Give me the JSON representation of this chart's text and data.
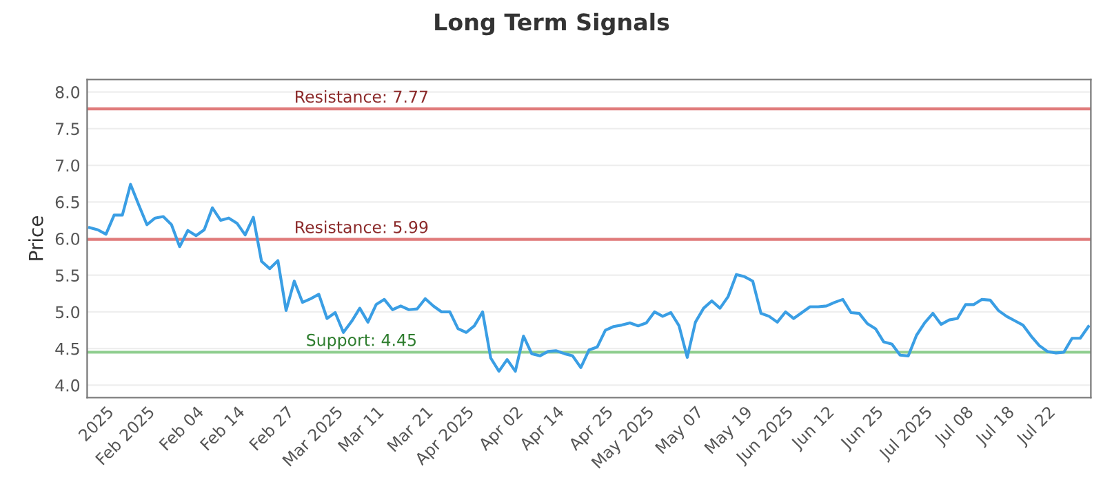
{
  "chart_data": {
    "type": "line",
    "title": "Long Term Signals",
    "ylabel": "Price",
    "categories": [
      null,
      null,
      "2025",
      null,
      null,
      null,
      null,
      "Feb 2025",
      null,
      null,
      null,
      null,
      null,
      "Feb 04",
      null,
      null,
      null,
      null,
      "Feb 14",
      null,
      null,
      null,
      null,
      null,
      "Feb 27",
      null,
      null,
      null,
      null,
      null,
      "Mar 2025",
      null,
      null,
      null,
      null,
      "Mar 11",
      null,
      null,
      null,
      null,
      null,
      "Mar 21",
      null,
      null,
      null,
      null,
      "Apr 2025",
      null,
      null,
      null,
      null,
      null,
      "Apr 02",
      null,
      null,
      null,
      null,
      "Apr 14",
      null,
      null,
      null,
      null,
      null,
      "Apr 25",
      null,
      null,
      null,
      null,
      "May 2025",
      null,
      null,
      null,
      null,
      null,
      "May 07",
      null,
      null,
      null,
      null,
      null,
      "May 19",
      null,
      null,
      null,
      null,
      "Jun 2025",
      null,
      null,
      null,
      null,
      "Jun 12",
      null,
      null,
      null,
      null,
      null,
      "Jun 25",
      null,
      null,
      null,
      null,
      null,
      "Jul 2025",
      null,
      null,
      null,
      null,
      "Jul 08",
      null,
      null,
      null,
      null,
      "Jul 18",
      null,
      null,
      null,
      null,
      "Jul 22",
      null,
      null,
      null,
      null,
      null
    ],
    "series": [
      {
        "color": "#3a9ee4",
        "values": [
          6.15,
          6.12,
          6.06,
          6.32,
          6.32,
          6.74,
          6.46,
          6.19,
          6.28,
          6.3,
          6.19,
          5.89,
          6.11,
          6.04,
          6.12,
          6.42,
          6.25,
          6.28,
          6.21,
          6.05,
          6.29,
          5.69,
          5.59,
          5.7,
          5.02,
          5.42,
          5.13,
          5.18,
          5.24,
          4.91,
          4.99,
          4.72,
          4.87,
          5.05,
          4.86,
          5.1,
          5.17,
          5.03,
          5.08,
          5.03,
          5.04,
          5.18,
          5.08,
          5.0,
          5.0,
          4.77,
          4.72,
          4.81,
          5.0,
          4.37,
          4.19,
          4.35,
          4.19,
          4.67,
          4.43,
          4.4,
          4.46,
          4.47,
          4.43,
          4.4,
          4.24,
          4.48,
          4.52,
          4.75,
          4.8,
          4.82,
          4.85,
          4.81,
          4.85,
          5.0,
          4.94,
          4.99,
          4.81,
          4.38,
          4.86,
          5.05,
          5.15,
          5.05,
          5.21,
          5.51,
          5.48,
          5.42,
          4.98,
          4.94,
          4.86,
          5.0,
          4.91,
          4.99,
          5.07,
          5.07,
          5.08,
          5.13,
          5.17,
          4.99,
          4.98,
          4.84,
          4.77,
          4.59,
          4.56,
          4.41,
          4.4,
          4.68,
          4.85,
          4.98,
          4.83,
          4.89,
          4.91,
          5.1,
          5.1,
          5.17,
          5.16,
          5.02,
          4.94,
          4.88,
          4.82,
          4.67,
          4.54,
          4.46,
          4.44,
          4.45,
          4.64,
          4.64,
          4.8
        ]
      }
    ],
    "ylim": [
      3.83,
      8.17
    ],
    "yticks": [
      {
        "value": 4.0,
        "label": "4.0"
      },
      {
        "value": 4.5,
        "label": "4.5"
      },
      {
        "value": 5.0,
        "label": "5.0"
      },
      {
        "value": 5.5,
        "label": "5.5"
      },
      {
        "value": 6.0,
        "label": "6.0"
      },
      {
        "value": 6.5,
        "label": "6.5"
      },
      {
        "value": 7.0,
        "label": "7.0"
      },
      {
        "value": 7.5,
        "label": "7.5"
      },
      {
        "value": 8.0,
        "label": "8.0"
      }
    ],
    "grid": "y",
    "marker": "none",
    "line_style": "solid",
    "legend": false,
    "ref_lines": [
      {
        "axis": "y",
        "value": 7.77,
        "label": "Resistance: 7.77",
        "color": "#e07b7b"
      },
      {
        "axis": "y",
        "value": 5.99,
        "label": "Resistance: 5.99",
        "color": "#e07b7b"
      },
      {
        "axis": "y",
        "value": 4.45,
        "label": "Support: 4.45",
        "color": "#8fce8f"
      }
    ]
  }
}
